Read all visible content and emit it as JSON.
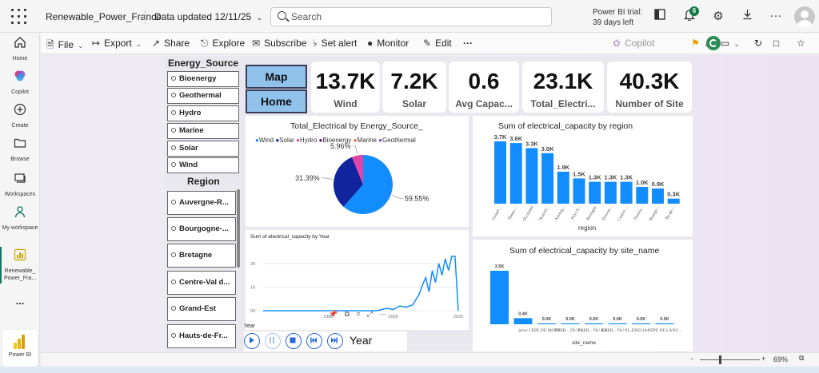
{
  "topbar": {
    "app_title": "Renewable_Power_France",
    "data_updated": "Data updated 12/11/25",
    "search_placeholder": "Search",
    "trial_line1": "Power BI trial:",
    "trial_line2": "39 days left",
    "notification_count": "6"
  },
  "leftnav": {
    "items": [
      {
        "label": "Home",
        "icon": "home-icon"
      },
      {
        "label": "Copilot",
        "icon": "copilot-icon"
      },
      {
        "label": "Create",
        "icon": "plus-icon"
      },
      {
        "label": "Browse",
        "icon": "folder-icon"
      },
      {
        "label": "Workspaces",
        "icon": "workspaces-icon"
      },
      {
        "label": "My workspace",
        "icon": "person-icon"
      },
      {
        "label": "Renewable_ Power_Fra...",
        "icon": "report-icon"
      }
    ],
    "more_label": "...",
    "powerbi_label": "Power BI"
  },
  "toolbar": {
    "file": "File",
    "export": "Export",
    "share": "Share",
    "explore": "Explore",
    "subscribe": "Subscribe",
    "set_alert": "Set alert",
    "monitor": "Monitor",
    "edit": "Edit",
    "more": "···",
    "copilot": "Copilot"
  },
  "slicers": {
    "energy_title": "Energy_Source",
    "energy_items": [
      "Bioenergy",
      "Geothermal",
      "Hydro",
      "Marine",
      "Solar",
      "Wind"
    ],
    "region_title": "Region",
    "region_items": [
      "Auvergne-R...",
      "Bourgogne-...",
      "Bretagne",
      "Centre-Val d...",
      "Grand-Est",
      "Hauts-de-Fr..."
    ]
  },
  "nav_buttons": {
    "map": "Map",
    "home": "Home"
  },
  "kpis": [
    {
      "value": "13.7K",
      "label": "Wind"
    },
    {
      "value": "7.2K",
      "label": "Solar"
    },
    {
      "value": "0.6",
      "label": "Avg Capac..."
    },
    {
      "value": "23.1K",
      "label": "Total_Electri..."
    },
    {
      "value": "40.3K",
      "label": "Number of Site"
    }
  ],
  "playback": {
    "year_label": "Year",
    "axis_label": "Year"
  },
  "status": {
    "zoom": "69%",
    "minus": "-",
    "plus": "+"
  },
  "colors": {
    "wind": "#118dff",
    "solar": "#12239e",
    "hydro": "#e66c37",
    "bioenergy": "#6b007b",
    "marine": "#e044a7",
    "geothermal": "#744ec2",
    "bar": "#118dff",
    "nav_button": "#90c2ec"
  },
  "chart_data": [
    {
      "type": "pie",
      "title": "Total_Electrical by Energy_Source_",
      "legend": [
        "Wind",
        "Solar",
        "Hydro",
        "Bioenergy",
        "Marine",
        "Geothermal"
      ],
      "categories": [
        "Wind",
        "Solar",
        "Marine"
      ],
      "values": [
        59.55,
        31.39,
        5.96
      ],
      "data_labels": [
        "59.55%",
        "31.39%",
        "5.96%"
      ]
    },
    {
      "type": "bar",
      "title": "Sum of electrical_capacity by region",
      "xlabel": "region",
      "categories": [
        "Grand-...",
        "Hauts-...",
        "Occitanie",
        "Nouvel...",
        "Auverg...",
        "Pays d...",
        "Bretagne",
        "Proven...",
        "Centre-...",
        "Norma...",
        "Bourgo...",
        "Île-de-..."
      ],
      "values": [
        3.7,
        3.6,
        3.3,
        3.0,
        1.9,
        1.5,
        1.3,
        1.3,
        1.3,
        1.0,
        0.9,
        0.3
      ],
      "data_labels": [
        "3.7K",
        "3.6K",
        "3.3K",
        "3.0K",
        "1.9K",
        "1.5K",
        "1.3K",
        "1.3K",
        "1.3K",
        "1.0K",
        "0.9K",
        "0.3K"
      ]
    },
    {
      "type": "line",
      "title": "Sum of electrical_capacity by Year",
      "x": [
        1960,
        1965,
        1970,
        1975,
        1980,
        1985,
        1990,
        1995,
        1998,
        2000,
        2002,
        2004,
        2006,
        2008,
        2009,
        2010,
        2011,
        2012,
        2013,
        2014,
        2015,
        2016,
        2017,
        2018,
        2019,
        2020
      ],
      "values": [
        0,
        0,
        0,
        0,
        0,
        0,
        0,
        0,
        100,
        50,
        200,
        150,
        250,
        700,
        1100,
        1400,
        800,
        1700,
        1200,
        2000,
        1500,
        2200,
        1700,
        2300,
        2300,
        0
      ],
      "xticks": [
        "1980",
        "2000",
        "2020"
      ],
      "yticks": [
        "0K",
        "1K",
        "2K"
      ],
      "ylim": [
        0,
        2500
      ]
    },
    {
      "type": "bar",
      "title": "Sum of electrical_capacity by site_name",
      "xlabel": "site_name",
      "categories": [
        "",
        "prive",
        "CEPE DE MONT ...",
        "ENER... DU PL...",
        "ENER... DU KE...",
        "ENER... DU PL...",
        "ERELIA 1",
        "CEPE DE LANG..."
      ],
      "values": [
        3.5,
        0.4,
        0.0,
        0.0,
        0.0,
        0.0,
        0.0,
        0.0
      ],
      "data_labels": [
        "3.5K",
        "0.4K",
        "0.0K",
        "0.0K",
        "0.0K",
        "0.0K",
        "0.0K",
        "0.0K"
      ]
    }
  ]
}
